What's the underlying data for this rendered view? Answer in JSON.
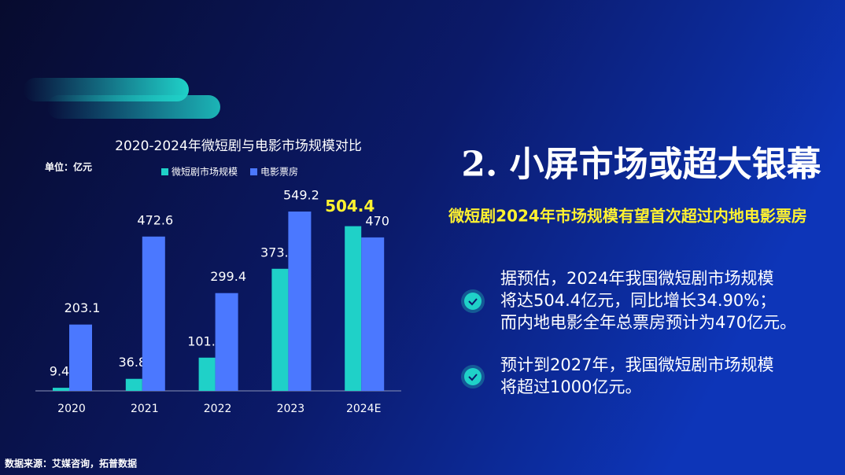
{
  "chart_data": {
    "type": "bar",
    "title": "2020-2024年微短剧与电影市场规模对比",
    "unit": "单位：亿元",
    "categories": [
      "2020",
      "2021",
      "2022",
      "2023",
      "2024E"
    ],
    "series": [
      {
        "name": "微短剧市场规模",
        "color": "#1fd1c8",
        "values": [
          9.4,
          36.8,
          101.7,
          373.9,
          504.4
        ]
      },
      {
        "name": "电影票房",
        "color": "#4b78ff",
        "values": [
          203.1,
          472.6,
          299.4,
          549.2,
          470
        ]
      }
    ],
    "highlight": {
      "series": 0,
      "index": 4,
      "color": "#fff230"
    }
  },
  "slide": {
    "heading": "2. 小屏市场或超大银幕",
    "subheading": "微短剧2024年市场规模有望首次超过内地电影票房",
    "bullets": [
      [
        "据预估，2024年我国微短剧市场规模",
        "将达504.4亿元，同比增长34.90%；",
        "而内地电影全年总票房预计为470亿元。"
      ],
      [
        "预计到2027年，我国微短剧市场规模",
        "将超过1000亿元。"
      ]
    ],
    "source": "数据来源：艾媒咨询，拓普数据"
  }
}
